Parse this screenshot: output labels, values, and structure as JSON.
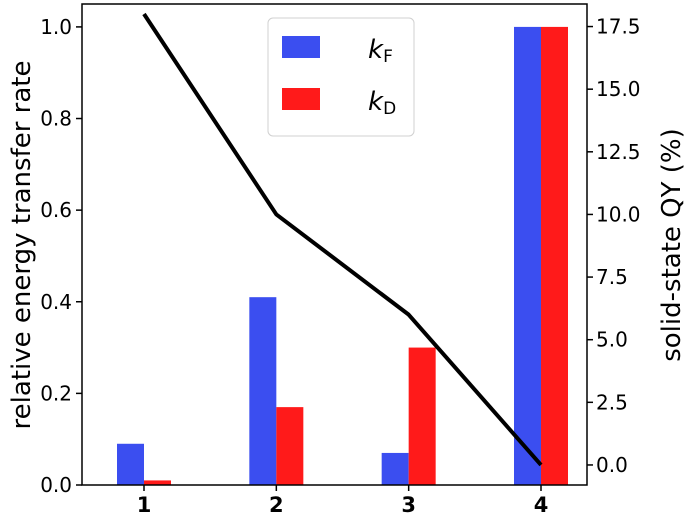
{
  "chart_data": {
    "type": "bar",
    "categories": [
      "1",
      "2",
      "3",
      "4"
    ],
    "series": [
      {
        "name_main": "k",
        "name_sub": "F",
        "type": "bar",
        "axis": "left",
        "color": "#3b4ef0",
        "values": [
          0.09,
          0.41,
          0.07,
          1.0
        ]
      },
      {
        "name_main": "k",
        "name_sub": "D",
        "type": "bar",
        "axis": "left",
        "color": "#ff1a1a",
        "values": [
          0.01,
          0.17,
          0.3,
          1.0
        ]
      },
      {
        "type": "line",
        "axis": "right",
        "color": "#000000",
        "values": [
          18.0,
          10.0,
          6.0,
          0.0
        ]
      }
    ],
    "ylabel": "relative energy transfer rate",
    "y2label": "solid-state QY (%)",
    "ylim": [
      0,
      1.05
    ],
    "y2lim": [
      -0.8,
      18.4
    ],
    "yticks": [
      "0.0",
      "0.2",
      "0.4",
      "0.6",
      "0.8",
      "1.0"
    ],
    "y2ticks": [
      "0.0",
      "2.5",
      "5.0",
      "7.5",
      "10.0",
      "12.5",
      "15.0",
      "17.5"
    ],
    "grid": false,
    "legend_position": "top-center"
  }
}
